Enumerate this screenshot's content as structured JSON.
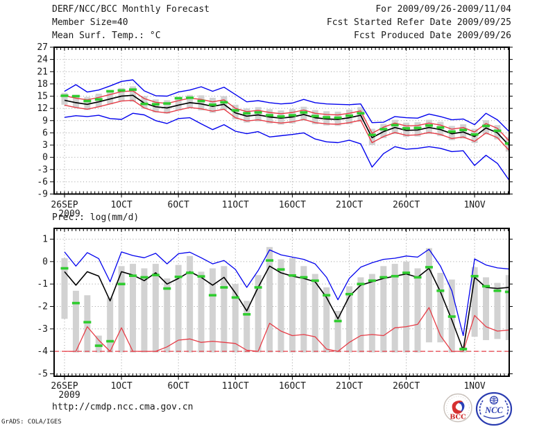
{
  "header": {
    "title": "DERF/NCC/BCC Monthly Forecast",
    "valid_range": "For 2009/09/26-2009/11/04",
    "member_size": "Member Size=40",
    "refer_date": "Fcst Started Refer Date 2009/09/25",
    "produced_date": "Fcst Produced Date 2009/09/26"
  },
  "footer": {
    "url": "http://cmdp.ncc.cma.gov.cn",
    "credit": "GrADS: COLA/IGES",
    "bcc_logo_text": "BCC",
    "ncc_logo_text": "NCC"
  },
  "colors": {
    "line_blue": "#0202ee",
    "line_red": "#e63c46",
    "line_black": "#000000",
    "tick_green": "#2fcc2f",
    "bar_gray": "#d2d2d2",
    "grid_gray": "#9a9a9a",
    "frame_black": "#000000",
    "logo_blue": "#2a3cb0",
    "logo_red": "#cc2222"
  },
  "chart_data": [
    {
      "type": "line",
      "title": "Mean Surf. Temp.: °C",
      "ylabel": "°C",
      "ylim": [
        -9,
        27
      ],
      "grid": true,
      "yticks": [
        27,
        24,
        21,
        18,
        15,
        12,
        9,
        6,
        3,
        0,
        -3,
        -6,
        -9
      ],
      "xticks": [
        {
          "day": 0,
          "label": "26SEP",
          "sublabel": "2009"
        },
        {
          "day": 5,
          "label": "1OCT"
        },
        {
          "day": 10,
          "label": "6OCT"
        },
        {
          "day": 15,
          "label": "11OCT"
        },
        {
          "day": 20,
          "label": "16OCT"
        },
        {
          "day": 25,
          "label": "21OCT"
        },
        {
          "day": 30,
          "label": "26OCT"
        },
        {
          "day": 36,
          "label": "1NOV"
        }
      ],
      "n_days": 40,
      "series": [
        {
          "name": "ensemble-spread-bar",
          "style": "bar",
          "color": "#d2d2d2",
          "high": [
            15.8,
            15.3,
            14.8,
            15.6,
            16.4,
            17.0,
            17.4,
            15.0,
            14.2,
            14.0,
            14.8,
            15.3,
            15.2,
            14.6,
            15.0,
            12.9,
            12.0,
            12.3,
            11.8,
            11.5,
            11.8,
            12.4,
            11.6,
            11.3,
            11.2,
            11.7,
            12.3,
            7.0,
            8.2,
            9.2,
            8.5,
            8.6,
            9.2,
            8.7,
            7.7,
            8.1,
            7.0,
            9.1,
            7.9,
            5.0
          ],
          "low": [
            12.9,
            12.2,
            11.6,
            12.3,
            13.0,
            13.7,
            13.6,
            11.9,
            11.0,
            10.7,
            11.5,
            12.1,
            11.5,
            10.9,
            11.6,
            9.3,
            8.5,
            8.8,
            8.3,
            8.0,
            8.3,
            9.0,
            8.1,
            7.8,
            7.7,
            8.1,
            8.7,
            3.0,
            4.7,
            5.7,
            5.0,
            5.1,
            5.7,
            5.2,
            4.2,
            4.6,
            3.5,
            5.6,
            4.4,
            1.4
          ]
        },
        {
          "name": "upper-quartile-red",
          "style": "line",
          "color": "#e63c46",
          "width": 1.4,
          "values": [
            15.1,
            14.5,
            14.1,
            14.7,
            15.4,
            16.1,
            16.3,
            14.4,
            13.5,
            13.2,
            13.9,
            14.5,
            14.2,
            13.6,
            14.1,
            12.0,
            11.2,
            11.5,
            11.0,
            10.7,
            11.0,
            11.6,
            10.8,
            10.5,
            10.4,
            10.8,
            11.4,
            5.9,
            7.4,
            8.4,
            7.7,
            7.8,
            8.4,
            7.9,
            6.9,
            7.3,
            6.2,
            8.3,
            7.1,
            4.1
          ]
        },
        {
          "name": "lower-quartile-red",
          "style": "line",
          "color": "#e63c46",
          "width": 1.4,
          "values": [
            12.8,
            12.2,
            11.8,
            12.4,
            13.1,
            13.8,
            14.0,
            12.1,
            11.2,
            10.9,
            11.6,
            12.2,
            11.9,
            11.3,
            11.8,
            9.7,
            8.9,
            9.2,
            8.7,
            8.4,
            8.7,
            9.3,
            8.5,
            8.2,
            8.1,
            8.5,
            9.1,
            3.6,
            5.1,
            6.1,
            5.4,
            5.5,
            6.1,
            5.6,
            4.6,
            5.0,
            3.9,
            6.0,
            4.8,
            1.8
          ]
        },
        {
          "name": "ensemble-mean-black",
          "style": "line",
          "color": "#000000",
          "width": 1.7,
          "values": [
            14.0,
            13.4,
            13.0,
            13.6,
            14.3,
            15.0,
            15.2,
            13.3,
            12.4,
            12.1,
            12.8,
            13.4,
            13.1,
            12.5,
            13.0,
            10.9,
            10.1,
            10.4,
            9.9,
            9.6,
            9.9,
            10.5,
            9.7,
            9.4,
            9.3,
            9.7,
            10.3,
            4.8,
            6.3,
            7.3,
            6.6,
            6.7,
            7.3,
            6.8,
            5.8,
            6.2,
            5.1,
            7.2,
            6.0,
            3.0
          ]
        },
        {
          "name": "ensemble-min-blue",
          "style": "line",
          "color": "#0202ee",
          "width": 1.4,
          "values": [
            9.8,
            10.2,
            10.0,
            10.3,
            9.5,
            9.3,
            10.8,
            10.4,
            9.0,
            8.3,
            9.5,
            9.7,
            8.2,
            6.8,
            8.0,
            6.4,
            5.8,
            6.3,
            5.0,
            5.3,
            5.6,
            6.0,
            4.5,
            3.8,
            3.6,
            4.2,
            3.3,
            -2.4,
            0.9,
            2.6,
            2.0,
            2.2,
            2.6,
            2.2,
            1.4,
            1.6,
            -2.0,
            0.5,
            -1.5,
            -5.5
          ]
        },
        {
          "name": "ensemble-max-blue",
          "style": "line",
          "color": "#0202ee",
          "width": 1.4,
          "values": [
            16.2,
            17.8,
            16.0,
            16.5,
            17.5,
            18.6,
            19.0,
            16.3,
            15.1,
            15.0,
            16.0,
            16.5,
            17.3,
            16.2,
            17.2,
            15.4,
            13.6,
            13.9,
            13.4,
            13.1,
            13.3,
            14.2,
            13.4,
            13.1,
            13.0,
            12.9,
            13.1,
            8.5,
            8.6,
            10.0,
            9.7,
            9.6,
            10.6,
            10.0,
            9.2,
            9.4,
            8.0,
            10.8,
            9.2,
            6.4
          ]
        },
        {
          "name": "median-green-tick",
          "style": "tick",
          "color": "#2fcc2f",
          "values": [
            15.1,
            15.0,
            13.8,
            14.2,
            16.2,
            16.4,
            16.6,
            13.1,
            13.0,
            13.2,
            14.5,
            14.6,
            13.8,
            12.9,
            13.5,
            11.5,
            10.8,
            11.0,
            10.3,
            10.0,
            10.3,
            11.0,
            10.1,
            9.8,
            9.7,
            10.2,
            10.8,
            5.5,
            6.9,
            7.9,
            7.1,
            7.2,
            7.8,
            7.3,
            6.3,
            6.7,
            5.6,
            7.7,
            6.5,
            3.4
          ]
        }
      ]
    },
    {
      "type": "line",
      "title": "Prec.: log(mm/d)",
      "ylabel": "log(mm/d)",
      "ylim": [
        -5.11,
        1.48
      ],
      "grid": true,
      "yticks": [
        1,
        0,
        -1,
        -2,
        -3,
        -4,
        -5
      ],
      "xticks": [
        {
          "day": 0,
          "label": "26SEP",
          "sublabel": "2009"
        },
        {
          "day": 5,
          "label": "1OCT"
        },
        {
          "day": 10,
          "label": "6OCT"
        },
        {
          "day": 15,
          "label": "11OCT"
        },
        {
          "day": 20,
          "label": "16OCT"
        },
        {
          "day": 25,
          "label": "21OCT"
        },
        {
          "day": 30,
          "label": "26OCT"
        },
        {
          "day": 36,
          "label": "1NOV"
        }
      ],
      "n_days": 40,
      "series": [
        {
          "name": "ensemble-spread-bar",
          "style": "bar",
          "color": "#d2d2d2",
          "high": [
            0.15,
            -1.3,
            -1.5,
            -3.3,
            -1.6,
            -0.2,
            -0.1,
            -0.3,
            -0.1,
            -0.75,
            -0.15,
            0.25,
            -0.45,
            -0.3,
            -0.2,
            -1.0,
            -1.75,
            -0.6,
            0.65,
            0.1,
            0.15,
            -0.2,
            -0.55,
            -1.15,
            -2.2,
            -1.1,
            -0.7,
            -0.55,
            -0.2,
            -0.1,
            0.0,
            -0.3,
            0.6,
            -0.5,
            -0.8,
            -3.8,
            -0.25,
            -0.7,
            -0.95,
            -0.6
          ],
          "low": [
            -2.55,
            -4.05,
            -4.05,
            -4.05,
            -4.05,
            -4.05,
            -4.05,
            -4.05,
            -4.05,
            -4.05,
            -4.05,
            -4.05,
            -4.05,
            -4.05,
            -4.05,
            -4.05,
            -4.05,
            -4.05,
            -4.05,
            -4.05,
            -4.05,
            -4.05,
            -4.05,
            -4.05,
            -4.05,
            -4.05,
            -4.05,
            -4.05,
            -4.05,
            -4.05,
            -4.05,
            -4.05,
            -3.6,
            -3.6,
            -4.05,
            -4.05,
            -3.35,
            -3.5,
            -3.45,
            -3.5
          ]
        },
        {
          "name": "zero-precip-floor",
          "style": "hline",
          "color": "#e63c46",
          "value": -4,
          "dash": "7 4"
        },
        {
          "name": "ensemble-min-red",
          "style": "line",
          "color": "#e63c46",
          "width": 1.3,
          "values": [
            -4,
            -4,
            -2.9,
            -3.5,
            -4,
            -2.95,
            -4,
            -4,
            -4,
            -3.8,
            -3.5,
            -3.45,
            -3.6,
            -3.55,
            -3.6,
            -3.65,
            -3.95,
            -4,
            -2.75,
            -3.1,
            -3.3,
            -3.25,
            -3.35,
            -3.9,
            -4,
            -3.6,
            -3.3,
            -3.25,
            -3.3,
            -2.95,
            -2.9,
            -2.8,
            -2.05,
            -3.3,
            -4,
            -4,
            -2.4,
            -2.9,
            -3.1,
            -3.05
          ]
        },
        {
          "name": "ensemble-mean-black",
          "style": "line",
          "color": "#000000",
          "width": 1.6,
          "values": [
            -0.45,
            -1.05,
            -0.45,
            -0.65,
            -1.75,
            -0.45,
            -0.6,
            -0.85,
            -0.5,
            -1.0,
            -0.75,
            -0.45,
            -0.7,
            -1.05,
            -0.7,
            -1.4,
            -2.2,
            -1.15,
            -0.2,
            -0.5,
            -0.65,
            -0.75,
            -0.9,
            -1.6,
            -2.55,
            -1.55,
            -1.05,
            -0.9,
            -0.75,
            -0.65,
            -0.55,
            -0.7,
            -0.3,
            -1.35,
            -2.6,
            -3.95,
            -0.7,
            -1.15,
            -1.2,
            -1.15
          ]
        },
        {
          "name": "ensemble-max-blue",
          "style": "line",
          "color": "#0202ee",
          "width": 1.3,
          "values": [
            0.43,
            -0.2,
            0.4,
            0.13,
            -0.9,
            0.43,
            0.27,
            0.17,
            0.37,
            -0.1,
            0.35,
            0.42,
            0.17,
            -0.1,
            0.05,
            -0.35,
            -1.15,
            -0.4,
            0.52,
            0.3,
            0.2,
            0.1,
            -0.1,
            -0.7,
            -1.7,
            -0.75,
            -0.25,
            -0.05,
            0.1,
            0.15,
            0.25,
            0.2,
            0.55,
            -0.2,
            -1.3,
            -3.3,
            0.12,
            -0.15,
            -0.28,
            -0.33
          ]
        },
        {
          "name": "median-green-tick",
          "style": "tick",
          "color": "#2fcc2f",
          "values": [
            -0.3,
            -1.85,
            -2.7,
            -3.75,
            -3.55,
            -1.0,
            -0.63,
            -0.7,
            -0.6,
            -1.2,
            -0.68,
            -0.5,
            -0.66,
            -1.5,
            -1.15,
            -1.6,
            -2.35,
            -1.15,
            0.05,
            -0.35,
            -0.62,
            -0.7,
            -0.85,
            -1.5,
            -2.65,
            -1.45,
            -1.0,
            -0.85,
            -0.7,
            -0.65,
            -0.5,
            -0.7,
            -0.25,
            -1.3,
            -2.45,
            -3.9,
            -0.65,
            -1.1,
            -1.3,
            -1.35
          ]
        }
      ]
    }
  ]
}
